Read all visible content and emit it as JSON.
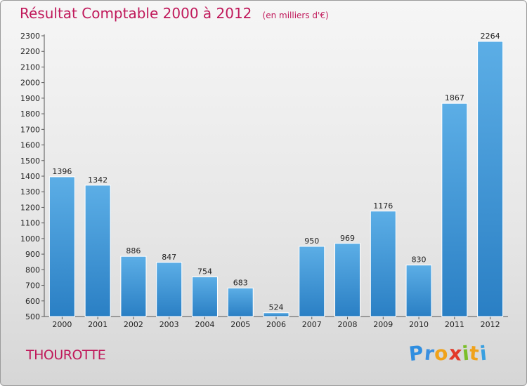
{
  "chart_data": {
    "type": "bar",
    "title": "Résultat Comptable 2000 à 2012",
    "subtitle": "(en milliers d'€)",
    "categories": [
      "2000",
      "2001",
      "2002",
      "2003",
      "2004",
      "2005",
      "2006",
      "2007",
      "2008",
      "2009",
      "2010",
      "2011",
      "2012"
    ],
    "values": [
      1396,
      1342,
      886,
      847,
      754,
      683,
      524,
      950,
      969,
      1176,
      830,
      1867,
      2264
    ],
    "ylim": [
      500,
      2300
    ],
    "yticks": [
      500,
      600,
      700,
      800,
      900,
      1000,
      1100,
      1200,
      1300,
      1400,
      1500,
      1600,
      1700,
      1800,
      1900,
      2000,
      2100,
      2200,
      2300
    ],
    "grid": false,
    "bar_color_top": "#5caee6",
    "bar_color_bottom": "#2a7fc4"
  },
  "footer": {
    "commune": "THOUROTTE",
    "logo": {
      "letters": [
        "P",
        "r",
        "o",
        "x",
        "i",
        "t",
        "i"
      ],
      "colors": [
        "#2f8ee0",
        "#3a8fe0",
        "#f0a21a",
        "#e23a2a",
        "#7bbf2a",
        "#f0a21a",
        "#3aa0e0"
      ]
    }
  }
}
